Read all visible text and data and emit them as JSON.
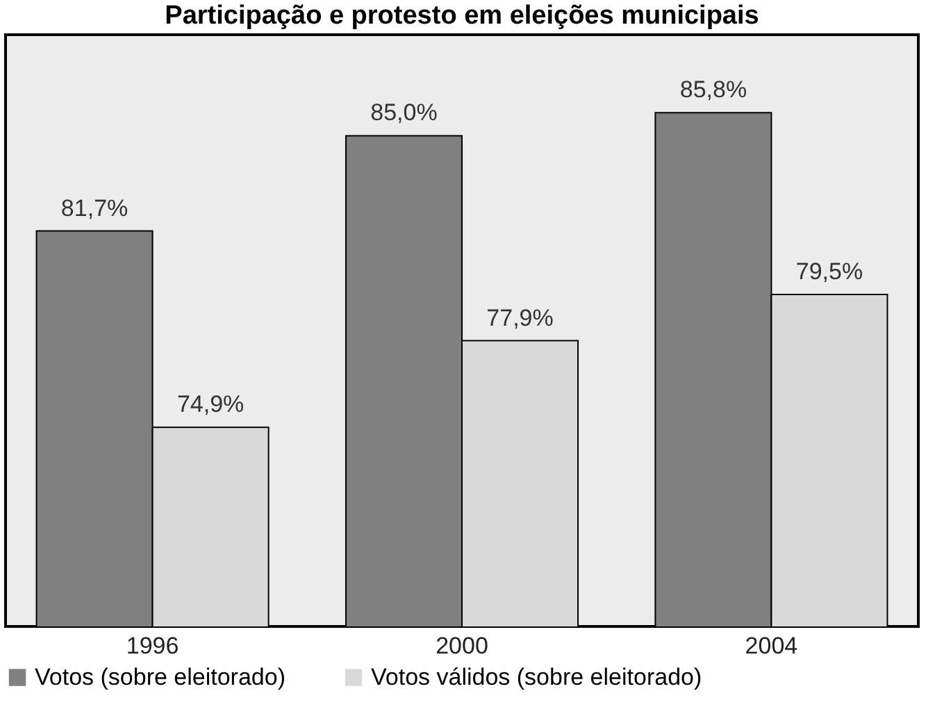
{
  "chart_data": {
    "type": "bar",
    "title": "Participação e protesto em eleições municipais",
    "categories": [
      "1996",
      "2000",
      "2004"
    ],
    "series": [
      {
        "name": "Votos (sobre eleitorado)",
        "color": "#808080",
        "values": [
          81.7,
          85.0,
          85.8
        ],
        "value_labels": [
          "81,7%",
          "85,0%",
          "85,8%"
        ]
      },
      {
        "name": "Votos válidos (sobre eleitorado)",
        "color": "#d9d9d9",
        "values": [
          74.9,
          77.9,
          79.5
        ],
        "value_labels": [
          "74,9%",
          "77,9%",
          "79,5%"
        ]
      }
    ],
    "ylim": [
      68,
      88.5
    ],
    "tick_labels": "x",
    "legend": "bottom"
  }
}
